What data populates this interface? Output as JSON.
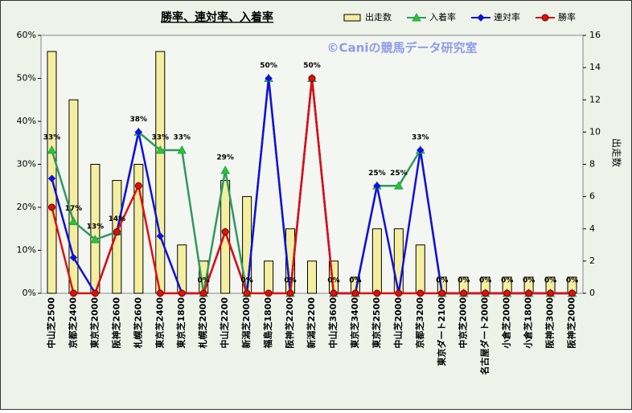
{
  "chart_data": {
    "type": "combo",
    "title": "勝率、連対率、入着率",
    "watermark": "©Caniの競馬データ研究室",
    "y2label": "出走数",
    "categories": [
      "中山芝2500",
      "京都芝2400",
      "東京芝2000",
      "阪神芝2600",
      "札幌芝2600",
      "東京芝2400",
      "東京芝1800",
      "札幌芝2000",
      "中山芝2200",
      "新潟芝2000",
      "福島芝1800",
      "阪神芝2200",
      "新潟芝2200",
      "中山芝3600",
      "東京芝3400",
      "東京芝2500",
      "中山芝2000",
      "京都芝3200",
      "東京ダート2100",
      "中京芝2000",
      "名古屋ダート2000",
      "小倉芝2000",
      "小倉芝1800",
      "阪神芝3000",
      "阪神芝2000"
    ],
    "series": [
      {
        "name": "出走数",
        "type": "bar",
        "axis": "y2",
        "color": "#f4efa0",
        "values": [
          15,
          12,
          8,
          7,
          8,
          15,
          3,
          2,
          7,
          6,
          2,
          4,
          2,
          2,
          1,
          4,
          4,
          3,
          1,
          1,
          1,
          1,
          1,
          1,
          1
        ]
      },
      {
        "name": "入着率",
        "type": "line",
        "marker": "triangle",
        "color": "#2e9a5e",
        "values": [
          33.3,
          16.7,
          12.5,
          14.3,
          37.5,
          33.3,
          33.3,
          0,
          28.6,
          0,
          50,
          0,
          50,
          0,
          0,
          25,
          25,
          33.3,
          0,
          0,
          0,
          0,
          0,
          0,
          0
        ],
        "value_labels": [
          "33%",
          "17%",
          "13%",
          "14%",
          "38%",
          "33%",
          "33%",
          "0%",
          "29%",
          "0%",
          "50%",
          "0%",
          "50%",
          "0%",
          "0%",
          "25%",
          "25%",
          "33%",
          "0%",
          "0%",
          "0%",
          "0%",
          "0%",
          "0%",
          "0%"
        ]
      },
      {
        "name": "連対率",
        "type": "line",
        "marker": "diamond",
        "color": "#1010e0",
        "values": [
          26.7,
          8.3,
          0,
          14.3,
          37.5,
          13.3,
          0,
          0,
          14.3,
          0,
          50,
          0,
          50,
          0,
          0,
          25,
          0,
          33.3,
          0,
          0,
          0,
          0,
          0,
          0,
          0
        ]
      },
      {
        "name": "勝率",
        "type": "line",
        "marker": "circle",
        "color": "#e01010",
        "values": [
          20,
          0,
          0,
          14.3,
          25,
          0,
          0,
          0,
          14.3,
          0,
          0,
          0,
          50,
          0,
          0,
          0,
          0,
          0,
          0,
          0,
          0,
          0,
          0,
          0,
          0
        ]
      }
    ],
    "ylim": [
      0,
      60
    ],
    "yticks": [
      {
        "value": 0,
        "label": "0%"
      },
      {
        "value": 10,
        "label": "10%"
      },
      {
        "value": 20,
        "label": "20%"
      },
      {
        "value": 30,
        "label": "30%"
      },
      {
        "value": 40,
        "label": "40%"
      },
      {
        "value": 50,
        "label": "50%"
      },
      {
        "value": 60,
        "label": "60%"
      }
    ],
    "y2lim": [
      0,
      16
    ],
    "y2ticks": [
      0,
      2,
      4,
      6,
      8,
      10,
      12,
      14,
      16
    ],
    "legend": "top-right"
  }
}
